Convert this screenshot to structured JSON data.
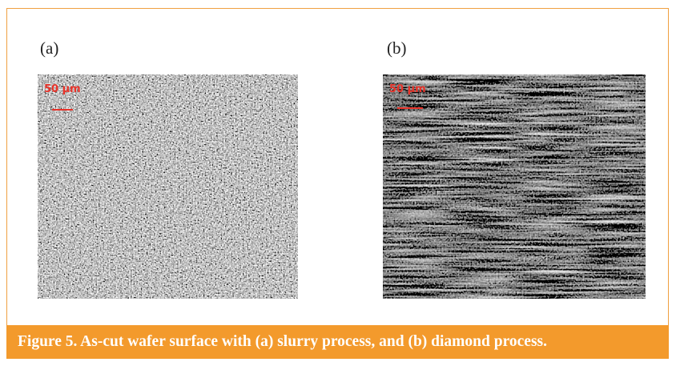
{
  "figure": {
    "panels": [
      {
        "label": "(a)",
        "scale_bar": "50 μm"
      },
      {
        "label": "(b)",
        "scale_bar": "50 μm"
      }
    ],
    "caption": "Figure 5. As-cut wafer surface with (a) slurry process, and (b) diamond process."
  }
}
